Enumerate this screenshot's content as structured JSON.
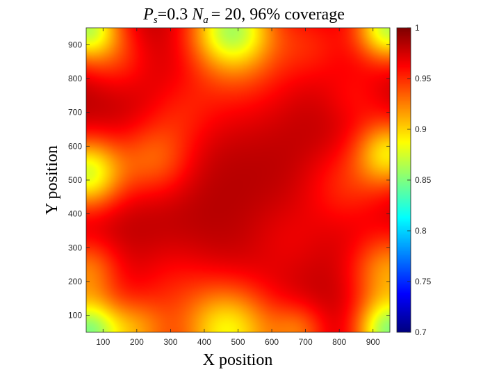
{
  "chart_data": {
    "type": "heatmap",
    "title": {
      "p_symbol": "P",
      "p_sub": "s",
      "p_value": "=0.3",
      "n_symbol": "N",
      "n_sub": "a",
      "n_value": "= 20, 96% coverage"
    },
    "xlabel": "X position",
    "ylabel": "Y position",
    "xlim": [
      50,
      950
    ],
    "ylim": [
      50,
      950
    ],
    "x_ticks": [
      100,
      200,
      300,
      400,
      500,
      600,
      700,
      800,
      900
    ],
    "y_ticks": [
      100,
      200,
      300,
      400,
      500,
      600,
      700,
      800,
      900
    ],
    "colorbar": {
      "min": 0.7,
      "max": 1,
      "ticks": [
        0.7,
        0.75,
        0.8,
        0.85,
        0.9,
        0.95,
        1
      ],
      "tick_labels": [
        "0.7",
        "0.75",
        "0.8",
        "0.85",
        "0.9",
        "0.95",
        "1"
      ],
      "colormap": "jet"
    },
    "base_value": 0.985,
    "hotspots": [
      {
        "x": 50,
        "y": 50,
        "value": 0.86,
        "spread": 70
      },
      {
        "x": 950,
        "y": 50,
        "value": 0.86,
        "spread": 70
      },
      {
        "x": 50,
        "y": 950,
        "value": 0.87,
        "spread": 70
      },
      {
        "x": 950,
        "y": 950,
        "value": 0.87,
        "spread": 70
      },
      {
        "x": 480,
        "y": 950,
        "value": 0.88,
        "spread": 85
      },
      {
        "x": 470,
        "y": 50,
        "value": 0.89,
        "spread": 100
      },
      {
        "x": 50,
        "y": 520,
        "value": 0.88,
        "spread": 75
      },
      {
        "x": 950,
        "y": 580,
        "value": 0.9,
        "spread": 70
      },
      {
        "x": 950,
        "y": 230,
        "value": 0.92,
        "spread": 80
      },
      {
        "x": 200,
        "y": 50,
        "value": 0.93,
        "spread": 70
      },
      {
        "x": 680,
        "y": 50,
        "value": 0.94,
        "spread": 60
      },
      {
        "x": 50,
        "y": 230,
        "value": 0.93,
        "spread": 70
      },
      {
        "x": 250,
        "y": 560,
        "value": 0.94,
        "spread": 80
      },
      {
        "x": 510,
        "y": 820,
        "value": 0.955,
        "spread": 120
      },
      {
        "x": 330,
        "y": 700,
        "value": 0.965,
        "spread": 80
      },
      {
        "x": 820,
        "y": 480,
        "value": 0.955,
        "spread": 90
      },
      {
        "x": 720,
        "y": 900,
        "value": 0.96,
        "spread": 80
      },
      {
        "x": 300,
        "y": 200,
        "value": 0.965,
        "spread": 90
      },
      {
        "x": 650,
        "y": 320,
        "value": 0.97,
        "spread": 90
      },
      {
        "x": 850,
        "y": 750,
        "value": 0.965,
        "spread": 70
      },
      {
        "x": 150,
        "y": 850,
        "value": 0.96,
        "spread": 70
      }
    ]
  }
}
